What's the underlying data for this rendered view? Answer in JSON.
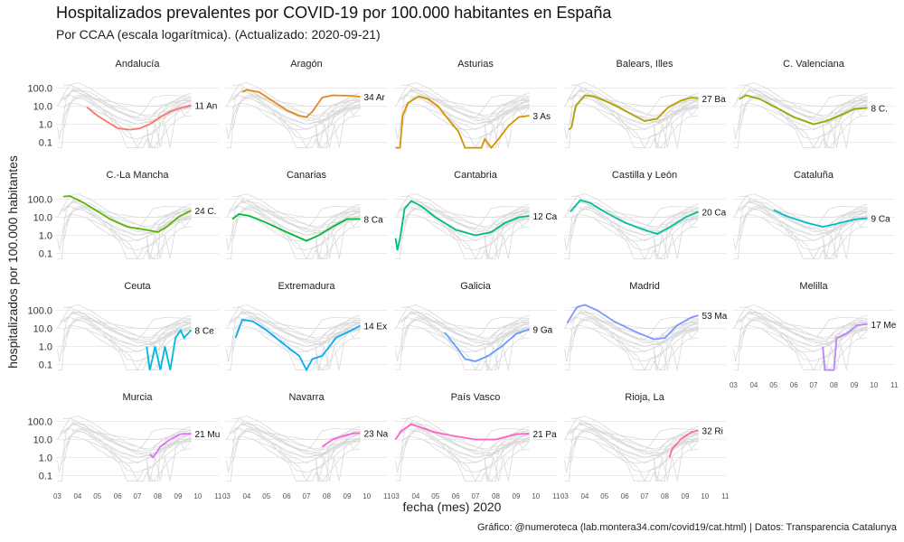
{
  "title": "Hospitalizados prevalentes por COVID-19 por 100.000 habitantes en España",
  "subtitle": "Por CCAA (escala logarítmica). (Actualizado: 2020-09-21)",
  "caption": "Gráfico: @numeroteca (lab.montera34.com/covid19/cat.html) | Datos: Transparencia Catalunya",
  "chart_data": {
    "type": "line",
    "xlabel": "fecha (mes) 2020",
    "ylabel": "hospitalizados por 100.000 habitantes",
    "y_scale": "log10",
    "ylim": [
      0.03,
      300
    ],
    "y_ticks": [
      0.1,
      1,
      10,
      100
    ],
    "y_tick_labels": [
      "0.1",
      "1.0",
      "10.0",
      "100.0"
    ],
    "x_domain": [
      "2020-02-28",
      "2020-11-02"
    ],
    "x_ticks": [
      "2020-03-01",
      "2020-04-01",
      "2020-05-01",
      "2020-06-01",
      "2020-07-01",
      "2020-08-01",
      "2020-09-01",
      "2020-10-01",
      "2020-11-01"
    ],
    "x_tick_labels": [
      "03",
      "04",
      "05",
      "06",
      "07",
      "08",
      "09",
      "10",
      "11"
    ],
    "grid": true,
    "layout": "facets 5 columns x 4 rows, background traces in grey",
    "series": [
      {
        "name": "Andalucía",
        "color": "#F8766D",
        "end_label": "11 An",
        "points": [
          [
            "2020-04-15",
            9
          ],
          [
            "2020-05-01",
            3
          ],
          [
            "2020-06-01",
            0.6
          ],
          [
            "2020-06-20",
            0.5
          ],
          [
            "2020-07-05",
            0.6
          ],
          [
            "2020-07-20",
            1
          ],
          [
            "2020-08-05",
            2.5
          ],
          [
            "2020-08-20",
            5
          ],
          [
            "2020-09-05",
            8
          ],
          [
            "2020-09-21",
            11
          ]
        ]
      },
      {
        "name": "Aragón",
        "color": "#E7861B",
        "end_label": "34 Ar",
        "points": [
          [
            "2020-03-25",
            60
          ],
          [
            "2020-04-01",
            80
          ],
          [
            "2020-04-20",
            60
          ],
          [
            "2020-05-10",
            20
          ],
          [
            "2020-06-01",
            6
          ],
          [
            "2020-06-20",
            3
          ],
          [
            "2020-07-01",
            2.5
          ],
          [
            "2020-07-10",
            5
          ],
          [
            "2020-07-25",
            30
          ],
          [
            "2020-08-10",
            40
          ],
          [
            "2020-09-01",
            38
          ],
          [
            "2020-09-21",
            34
          ]
        ]
      },
      {
        "name": "Asturias",
        "color": "#D39200",
        "end_label": "3 As",
        "points": [
          [
            "2020-03-01",
            0.05
          ],
          [
            "2020-03-08",
            0.05
          ],
          [
            "2020-03-12",
            3
          ],
          [
            "2020-03-20",
            15
          ],
          [
            "2020-04-05",
            35
          ],
          [
            "2020-04-20",
            25
          ],
          [
            "2020-05-05",
            10
          ],
          [
            "2020-05-20",
            2
          ],
          [
            "2020-06-05",
            0.4
          ],
          [
            "2020-06-15",
            0.05
          ],
          [
            "2020-07-10",
            0.05
          ],
          [
            "2020-07-15",
            0.15
          ],
          [
            "2020-07-25",
            0.05
          ],
          [
            "2020-08-05",
            0.15
          ],
          [
            "2020-08-20",
            0.8
          ],
          [
            "2020-09-05",
            2.5
          ],
          [
            "2020-09-21",
            3
          ]
        ]
      },
      {
        "name": "Balears, Illes",
        "color": "#B79F00",
        "end_label": "27 Ba",
        "points": [
          [
            "2020-03-08",
            0.5
          ],
          [
            "2020-03-12",
            0.7
          ],
          [
            "2020-03-18",
            10
          ],
          [
            "2020-04-01",
            40
          ],
          [
            "2020-04-15",
            35
          ],
          [
            "2020-05-01",
            20
          ],
          [
            "2020-05-20",
            10
          ],
          [
            "2020-06-15",
            3
          ],
          [
            "2020-07-01",
            1.5
          ],
          [
            "2020-07-20",
            2
          ],
          [
            "2020-08-05",
            8
          ],
          [
            "2020-08-25",
            20
          ],
          [
            "2020-09-10",
            30
          ],
          [
            "2020-09-21",
            27
          ]
        ]
      },
      {
        "name": "C. Valenciana",
        "color": "#93AA00",
        "end_label": "8 C.",
        "points": [
          [
            "2020-03-10",
            25
          ],
          [
            "2020-03-20",
            40
          ],
          [
            "2020-04-10",
            25
          ],
          [
            "2020-05-01",
            10
          ],
          [
            "2020-06-01",
            2.5
          ],
          [
            "2020-07-01",
            1
          ],
          [
            "2020-07-20",
            1.5
          ],
          [
            "2020-08-10",
            3
          ],
          [
            "2020-09-01",
            7
          ],
          [
            "2020-09-21",
            8
          ]
        ]
      },
      {
        "name": "C.-La Mancha",
        "color": "#5EB300",
        "end_label": "24 C.",
        "points": [
          [
            "2020-03-10",
            140
          ],
          [
            "2020-03-20",
            150
          ],
          [
            "2020-04-05",
            80
          ],
          [
            "2020-04-25",
            30
          ],
          [
            "2020-05-20",
            8
          ],
          [
            "2020-06-15",
            3
          ],
          [
            "2020-07-15",
            2
          ],
          [
            "2020-08-01",
            1.5
          ],
          [
            "2020-08-15",
            3
          ],
          [
            "2020-09-01",
            10
          ],
          [
            "2020-09-21",
            24
          ]
        ]
      },
      {
        "name": "Canarias",
        "color": "#00BA38",
        "end_label": "8 Ca",
        "points": [
          [
            "2020-03-10",
            8
          ],
          [
            "2020-03-20",
            15
          ],
          [
            "2020-04-05",
            12
          ],
          [
            "2020-05-01",
            5
          ],
          [
            "2020-06-01",
            1.5
          ],
          [
            "2020-07-01",
            0.5
          ],
          [
            "2020-07-20",
            1
          ],
          [
            "2020-08-10",
            3
          ],
          [
            "2020-09-01",
            8
          ],
          [
            "2020-09-21",
            8
          ]
        ]
      },
      {
        "name": "Cantabria",
        "color": "#00BF74",
        "end_label": "12 Ca",
        "points": [
          [
            "2020-03-01",
            0.7
          ],
          [
            "2020-03-04",
            0.15
          ],
          [
            "2020-03-08",
            0.7
          ],
          [
            "2020-03-15",
            30
          ],
          [
            "2020-03-25",
            80
          ],
          [
            "2020-04-10",
            40
          ],
          [
            "2020-05-01",
            10
          ],
          [
            "2020-06-01",
            2
          ],
          [
            "2020-07-01",
            1
          ],
          [
            "2020-07-25",
            1.5
          ],
          [
            "2020-08-15",
            5
          ],
          [
            "2020-09-05",
            10
          ],
          [
            "2020-09-21",
            12
          ]
        ]
      },
      {
        "name": "Castilla y León",
        "color": "#00C19F",
        "end_label": "20 Ca",
        "points": [
          [
            "2020-03-10",
            20
          ],
          [
            "2020-03-25",
            90
          ],
          [
            "2020-04-10",
            60
          ],
          [
            "2020-05-01",
            20
          ],
          [
            "2020-06-01",
            5
          ],
          [
            "2020-07-01",
            2
          ],
          [
            "2020-07-20",
            1.2
          ],
          [
            "2020-08-10",
            3
          ],
          [
            "2020-09-01",
            10
          ],
          [
            "2020-09-21",
            20
          ]
        ]
      },
      {
        "name": "Cataluña",
        "color": "#00BFC4",
        "end_label": "9 Ca",
        "points": [
          [
            "2020-05-01",
            25
          ],
          [
            "2020-05-20",
            12
          ],
          [
            "2020-06-20",
            5
          ],
          [
            "2020-07-15",
            3
          ],
          [
            "2020-08-01",
            4
          ],
          [
            "2020-08-20",
            6
          ],
          [
            "2020-09-05",
            8
          ],
          [
            "2020-09-21",
            9
          ]
        ]
      },
      {
        "name": "Ceuta",
        "color": "#00B9E3",
        "end_label": "8 Ce",
        "points": [
          [
            "2020-07-15",
            1
          ],
          [
            "2020-07-20",
            0.05
          ],
          [
            "2020-07-28",
            1
          ],
          [
            "2020-08-05",
            0.05
          ],
          [
            "2020-08-12",
            1
          ],
          [
            "2020-08-20",
            0.05
          ],
          [
            "2020-08-28",
            3
          ],
          [
            "2020-09-05",
            8
          ],
          [
            "2020-09-10",
            3
          ],
          [
            "2020-09-21",
            8
          ]
        ]
      },
      {
        "name": "Extremadura",
        "color": "#00ADFA",
        "end_label": "14 Ex",
        "points": [
          [
            "2020-03-15",
            3
          ],
          [
            "2020-03-25",
            30
          ],
          [
            "2020-04-10",
            25
          ],
          [
            "2020-05-01",
            8
          ],
          [
            "2020-06-01",
            1
          ],
          [
            "2020-06-20",
            0.3
          ],
          [
            "2020-07-01",
            0.05
          ],
          [
            "2020-07-10",
            0.2
          ],
          [
            "2020-07-25",
            0.3
          ],
          [
            "2020-08-15",
            3
          ],
          [
            "2020-09-05",
            7
          ],
          [
            "2020-09-21",
            14
          ]
        ]
      },
      {
        "name": "Galicia",
        "color": "#619CFF",
        "end_label": "9 Ga",
        "points": [
          [
            "2020-05-15",
            6
          ],
          [
            "2020-06-01",
            1
          ],
          [
            "2020-06-15",
            0.2
          ],
          [
            "2020-07-01",
            0.15
          ],
          [
            "2020-07-20",
            0.3
          ],
          [
            "2020-08-10",
            1
          ],
          [
            "2020-09-01",
            5
          ],
          [
            "2020-09-21",
            9
          ]
        ]
      },
      {
        "name": "Madrid",
        "color": "#7E96FF",
        "end_label": "53 Ma",
        "points": [
          [
            "2020-03-05",
            20
          ],
          [
            "2020-03-20",
            150
          ],
          [
            "2020-04-01",
            200
          ],
          [
            "2020-04-20",
            100
          ],
          [
            "2020-05-15",
            25
          ],
          [
            "2020-06-15",
            7
          ],
          [
            "2020-07-15",
            2.5
          ],
          [
            "2020-08-01",
            3
          ],
          [
            "2020-08-20",
            15
          ],
          [
            "2020-09-10",
            40
          ],
          [
            "2020-09-21",
            53
          ]
        ]
      },
      {
        "name": "Melilla",
        "color": "#B983FF",
        "end_label": "17 Me",
        "points": [
          [
            "2020-07-15",
            1
          ],
          [
            "2020-07-18",
            0.05
          ],
          [
            "2020-08-01",
            0.05
          ],
          [
            "2020-08-05",
            3
          ],
          [
            "2020-08-20",
            5
          ],
          [
            "2020-09-05",
            15
          ],
          [
            "2020-09-21",
            17
          ]
        ]
      },
      {
        "name": "Murcia",
        "color": "#DE71F9",
        "end_label": "21 Mu",
        "points": [
          [
            "2020-07-20",
            1.5
          ],
          [
            "2020-07-25",
            1
          ],
          [
            "2020-08-05",
            4
          ],
          [
            "2020-08-20",
            10
          ],
          [
            "2020-09-05",
            20
          ],
          [
            "2020-09-21",
            21
          ]
        ]
      },
      {
        "name": "Navarra",
        "color": "#FB61D7",
        "end_label": "23 Na",
        "points": [
          [
            "2020-07-25",
            4
          ],
          [
            "2020-08-10",
            10
          ],
          [
            "2020-08-25",
            15
          ],
          [
            "2020-09-10",
            22
          ],
          [
            "2020-09-21",
            23
          ]
        ]
      },
      {
        "name": "País Vasco",
        "color": "#FF61C3",
        "end_label": "21 Pa",
        "points": [
          [
            "2020-03-01",
            10
          ],
          [
            "2020-03-10",
            30
          ],
          [
            "2020-03-25",
            70
          ],
          [
            "2020-04-10",
            45
          ],
          [
            "2020-05-01",
            25
          ],
          [
            "2020-06-01",
            15
          ],
          [
            "2020-07-01",
            10
          ],
          [
            "2020-08-01",
            10
          ],
          [
            "2020-09-01",
            20
          ],
          [
            "2020-09-21",
            21
          ]
        ]
      },
      {
        "name": "Rioja, La",
        "color": "#FF6C91",
        "end_label": "32 Ri",
        "points": [
          [
            "2020-08-08",
            1
          ],
          [
            "2020-08-12",
            3
          ],
          [
            "2020-08-25",
            10
          ],
          [
            "2020-09-10",
            25
          ],
          [
            "2020-09-21",
            32
          ]
        ]
      }
    ]
  }
}
